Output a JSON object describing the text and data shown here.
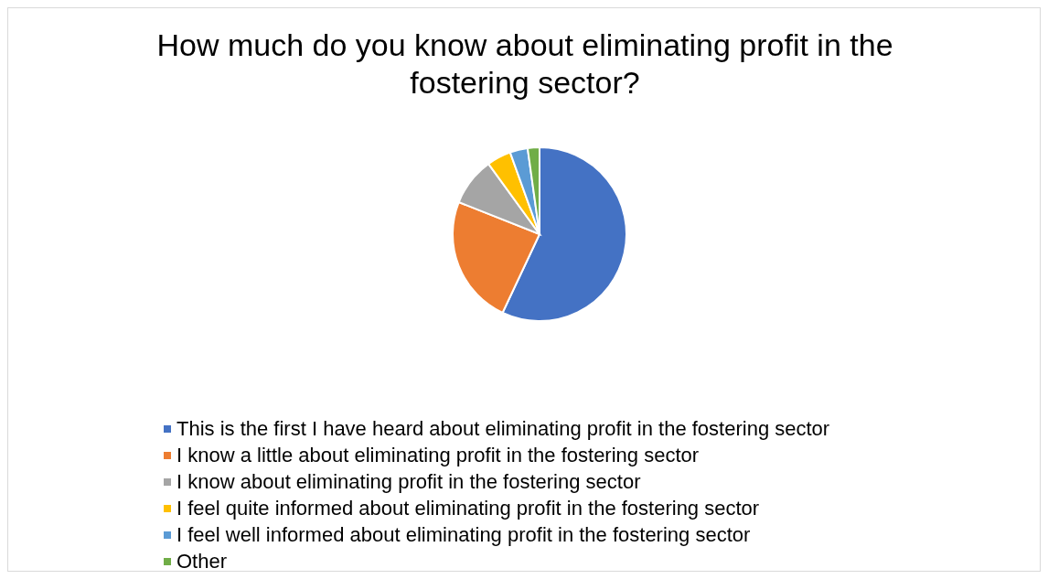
{
  "chart_data": {
    "type": "pie",
    "title": "How much do you know about eliminating profit in the fostering sector?",
    "categories": [
      "This is the first I have heard about eliminating profit in the fostering sector",
      "I know a little about eliminating profit in the fostering sector",
      "I know about eliminating profit in the fostering sector",
      "I feel quite informed about eliminating profit in the fostering sector",
      "I feel well informed about eliminating profit in the fostering sector",
      "Other"
    ],
    "values": [
      57,
      24,
      9,
      4.5,
      3.3,
      2.2
    ],
    "colors": [
      "#4472c4",
      "#ed7d31",
      "#a5a5a5",
      "#ffc000",
      "#5b9bd5",
      "#70ad47"
    ],
    "legend": "bottom"
  }
}
